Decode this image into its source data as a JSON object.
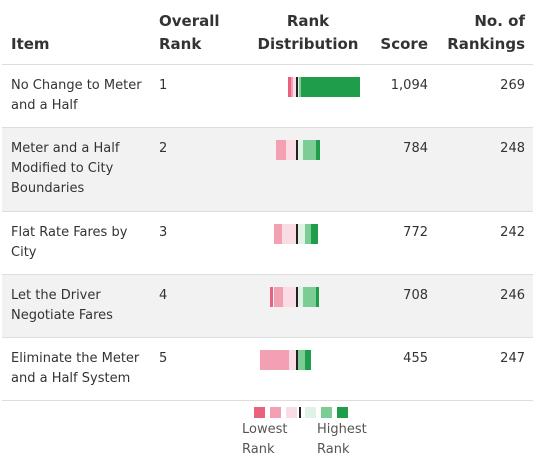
{
  "headers": {
    "item": "Item",
    "overall_rank_1": "Overall",
    "overall_rank_2": "Rank",
    "distribution_1": "Rank",
    "distribution_2": "Distribution",
    "score": "Score",
    "rankings_1": "No. of",
    "rankings_2": "Rankings"
  },
  "rows": [
    {
      "item_line1": "No Change to Meter",
      "item_line2": "and a Half",
      "item_line3": "",
      "rank": "1",
      "score": "1,094",
      "rankings": "269",
      "distribution": [
        0.03,
        0.03,
        0.03,
        0.01,
        0.02,
        0.66
      ]
    },
    {
      "item_line1": "Meter and a Half",
      "item_line2": "Modified to City",
      "item_line3": "Boundaries",
      "rank": "2",
      "score": "784",
      "rankings": "248",
      "distribution": [
        0.0,
        0.11,
        0.11,
        0.06,
        0.14,
        0.04
      ]
    },
    {
      "item_line1": "Flat Rate Fares by",
      "item_line2": "City",
      "item_line3": "",
      "rank": "3",
      "score": "772",
      "rankings": "242",
      "distribution": [
        0.0,
        0.09,
        0.16,
        0.08,
        0.06,
        0.08
      ]
    },
    {
      "item_line1": "Let the Driver",
      "item_line2": "Negotiate Fares",
      "item_line3": "",
      "rank": "4",
      "score": "708",
      "rankings": "246",
      "distribution": [
        0.04,
        0.11,
        0.14,
        0.05,
        0.15,
        0.03
      ]
    },
    {
      "item_line1": "Eliminate the Meter",
      "item_line2": "and a Half System",
      "item_line3": "",
      "rank": "5",
      "score": "455",
      "rankings": "247",
      "distribution": [
        0.0,
        0.32,
        0.08,
        0.0,
        0.08,
        0.06
      ]
    }
  ],
  "legend": {
    "lowest_1": "Lowest",
    "lowest_2": "Rank",
    "highest_1": "Highest",
    "highest_2": "Rank",
    "colors": [
      "#e8617d",
      "#f4a0b3",
      "#fadce4",
      "#dff2e4",
      "#7ccc96",
      "#1f9d4a"
    ]
  }
}
